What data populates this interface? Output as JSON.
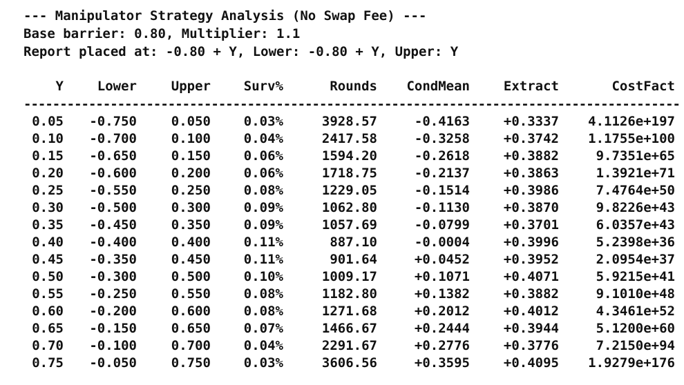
{
  "title": "--- Manipulator Strategy Analysis (No Swap Fee) ---",
  "params_line": "Base barrier: 0.80, Multiplier: 1.1",
  "placement_line": "Report placed at: -0.80 + Y, Lower: -0.80 + Y, Upper: Y",
  "table": {
    "columns": [
      "Y",
      "Lower",
      "Upper",
      "Surv%",
      "Rounds",
      "CondMean",
      "Extract",
      "CostFact"
    ],
    "separator_char": "-",
    "separator_count": 120,
    "rows": [
      [
        "0.05",
        "-0.750",
        "0.050",
        "0.03%",
        "3928.57",
        "-0.4163",
        "+0.3337",
        "4.1126e+197"
      ],
      [
        "0.10",
        "-0.700",
        "0.100",
        "0.04%",
        "2417.58",
        "-0.3258",
        "+0.3742",
        "1.1755e+100"
      ],
      [
        "0.15",
        "-0.650",
        "0.150",
        "0.06%",
        "1594.20",
        "-0.2618",
        "+0.3882",
        "9.7351e+65"
      ],
      [
        "0.20",
        "-0.600",
        "0.200",
        "0.06%",
        "1718.75",
        "-0.2137",
        "+0.3863",
        "1.3921e+71"
      ],
      [
        "0.25",
        "-0.550",
        "0.250",
        "0.08%",
        "1229.05",
        "-0.1514",
        "+0.3986",
        "7.4764e+50"
      ],
      [
        "0.30",
        "-0.500",
        "0.300",
        "0.09%",
        "1062.80",
        "-0.1130",
        "+0.3870",
        "9.8226e+43"
      ],
      [
        "0.35",
        "-0.450",
        "0.350",
        "0.09%",
        "1057.69",
        "-0.0799",
        "+0.3701",
        "6.0357e+43"
      ],
      [
        "0.40",
        "-0.400",
        "0.400",
        "0.11%",
        "887.10",
        "-0.0004",
        "+0.3996",
        "5.2398e+36"
      ],
      [
        "0.45",
        "-0.350",
        "0.450",
        "0.11%",
        "901.64",
        "+0.0452",
        "+0.3952",
        "2.0954e+37"
      ],
      [
        "0.50",
        "-0.300",
        "0.500",
        "0.10%",
        "1009.17",
        "+0.1071",
        "+0.4071",
        "5.9215e+41"
      ],
      [
        "0.55",
        "-0.250",
        "0.550",
        "0.08%",
        "1182.80",
        "+0.1382",
        "+0.3882",
        "9.1010e+48"
      ],
      [
        "0.60",
        "-0.200",
        "0.600",
        "0.08%",
        "1271.68",
        "+0.2012",
        "+0.4012",
        "4.3461e+52"
      ],
      [
        "0.65",
        "-0.150",
        "0.650",
        "0.07%",
        "1466.67",
        "+0.2444",
        "+0.3944",
        "5.1200e+60"
      ],
      [
        "0.70",
        "-0.100",
        "0.700",
        "0.04%",
        "2291.67",
        "+0.2776",
        "+0.3776",
        "7.2150e+94"
      ],
      [
        "0.75",
        "-0.050",
        "0.750",
        "0.03%",
        "3606.56",
        "+0.3595",
        "+0.4095",
        "1.9279e+176"
      ]
    ]
  }
}
